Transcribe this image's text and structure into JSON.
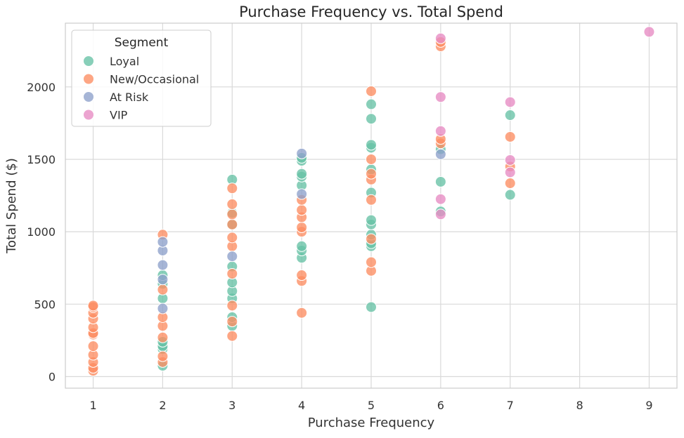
{
  "chart_data": {
    "type": "scatter",
    "title": "Purchase Frequency vs. Total Spend",
    "xlabel": "Purchase Frequency",
    "ylabel": "Total Spend ($)",
    "xlim": [
      0.6,
      9.4
    ],
    "ylim": [
      -80,
      2440
    ],
    "x_ticks": [
      1,
      2,
      3,
      4,
      5,
      6,
      7,
      8,
      9
    ],
    "y_ticks": [
      0,
      500,
      1000,
      1500,
      2000
    ],
    "grid": true,
    "legend": {
      "title": "Segment",
      "placement": "top-left"
    },
    "series": [
      {
        "name": "Loyal",
        "color": "#66c2a5",
        "points": [
          [
            2,
            75
          ],
          [
            2,
            190
          ],
          [
            2,
            210
          ],
          [
            2,
            240
          ],
          [
            2,
            540
          ],
          [
            2,
            640
          ],
          [
            2,
            700
          ],
          [
            3,
            350
          ],
          [
            3,
            410
          ],
          [
            3,
            540
          ],
          [
            3,
            590
          ],
          [
            3,
            650
          ],
          [
            3,
            760
          ],
          [
            3,
            1050
          ],
          [
            3,
            1130
          ],
          [
            3,
            1360
          ],
          [
            4,
            820
          ],
          [
            4,
            870
          ],
          [
            4,
            900
          ],
          [
            4,
            1320
          ],
          [
            4,
            1380
          ],
          [
            4,
            1400
          ],
          [
            4,
            1490
          ],
          [
            4,
            1510
          ],
          [
            5,
            480
          ],
          [
            5,
            900
          ],
          [
            5,
            920
          ],
          [
            5,
            980
          ],
          [
            5,
            1050
          ],
          [
            5,
            1080
          ],
          [
            5,
            1270
          ],
          [
            5,
            1430
          ],
          [
            5,
            1580
          ],
          [
            5,
            1600
          ],
          [
            5,
            1780
          ],
          [
            5,
            1880
          ],
          [
            6,
            1140
          ],
          [
            6,
            1345
          ],
          [
            6,
            1570
          ],
          [
            7,
            1255
          ],
          [
            7,
            1805
          ]
        ]
      },
      {
        "name": "New/Occasional",
        "color": "#fc8d62",
        "points": [
          [
            1,
            40
          ],
          [
            1,
            60
          ],
          [
            1,
            100
          ],
          [
            1,
            150
          ],
          [
            1,
            210
          ],
          [
            1,
            290
          ],
          [
            1,
            300
          ],
          [
            1,
            340
          ],
          [
            1,
            400
          ],
          [
            1,
            440
          ],
          [
            1,
            480
          ],
          [
            1,
            490
          ],
          [
            2,
            100
          ],
          [
            2,
            140
          ],
          [
            2,
            270
          ],
          [
            2,
            350
          ],
          [
            2,
            410
          ],
          [
            2,
            600
          ],
          [
            2,
            980
          ],
          [
            3,
            280
          ],
          [
            3,
            380
          ],
          [
            3,
            490
          ],
          [
            3,
            710
          ],
          [
            3,
            900
          ],
          [
            3,
            960
          ],
          [
            3,
            1050
          ],
          [
            3,
            1120
          ],
          [
            3,
            1190
          ],
          [
            3,
            1300
          ],
          [
            4,
            440
          ],
          [
            4,
            660
          ],
          [
            4,
            700
          ],
          [
            4,
            1000
          ],
          [
            4,
            1030
          ],
          [
            4,
            1100
          ],
          [
            4,
            1150
          ],
          [
            4,
            1220
          ],
          [
            5,
            730
          ],
          [
            5,
            790
          ],
          [
            5,
            950
          ],
          [
            5,
            1220
          ],
          [
            5,
            1360
          ],
          [
            5,
            1400
          ],
          [
            5,
            1500
          ],
          [
            5,
            1970
          ],
          [
            6,
            1610
          ],
          [
            6,
            1640
          ],
          [
            6,
            2280
          ],
          [
            6,
            2310
          ],
          [
            7,
            1335
          ],
          [
            7,
            1450
          ],
          [
            7,
            1655
          ]
        ]
      },
      {
        "name": "At Risk",
        "color": "#8da0cb",
        "points": [
          [
            2,
            470
          ],
          [
            2,
            670
          ],
          [
            2,
            770
          ],
          [
            2,
            870
          ],
          [
            2,
            930
          ],
          [
            3,
            830
          ],
          [
            4,
            1260
          ],
          [
            4,
            1540
          ],
          [
            6,
            1535
          ]
        ]
      },
      {
        "name": "VIP",
        "color": "#e78ac3",
        "points": [
          [
            6,
            1120
          ],
          [
            6,
            1225
          ],
          [
            6,
            1695
          ],
          [
            6,
            1930
          ],
          [
            6,
            2335
          ],
          [
            7,
            1410
          ],
          [
            7,
            1495
          ],
          [
            7,
            1895
          ],
          [
            9,
            2380
          ]
        ]
      }
    ]
  }
}
